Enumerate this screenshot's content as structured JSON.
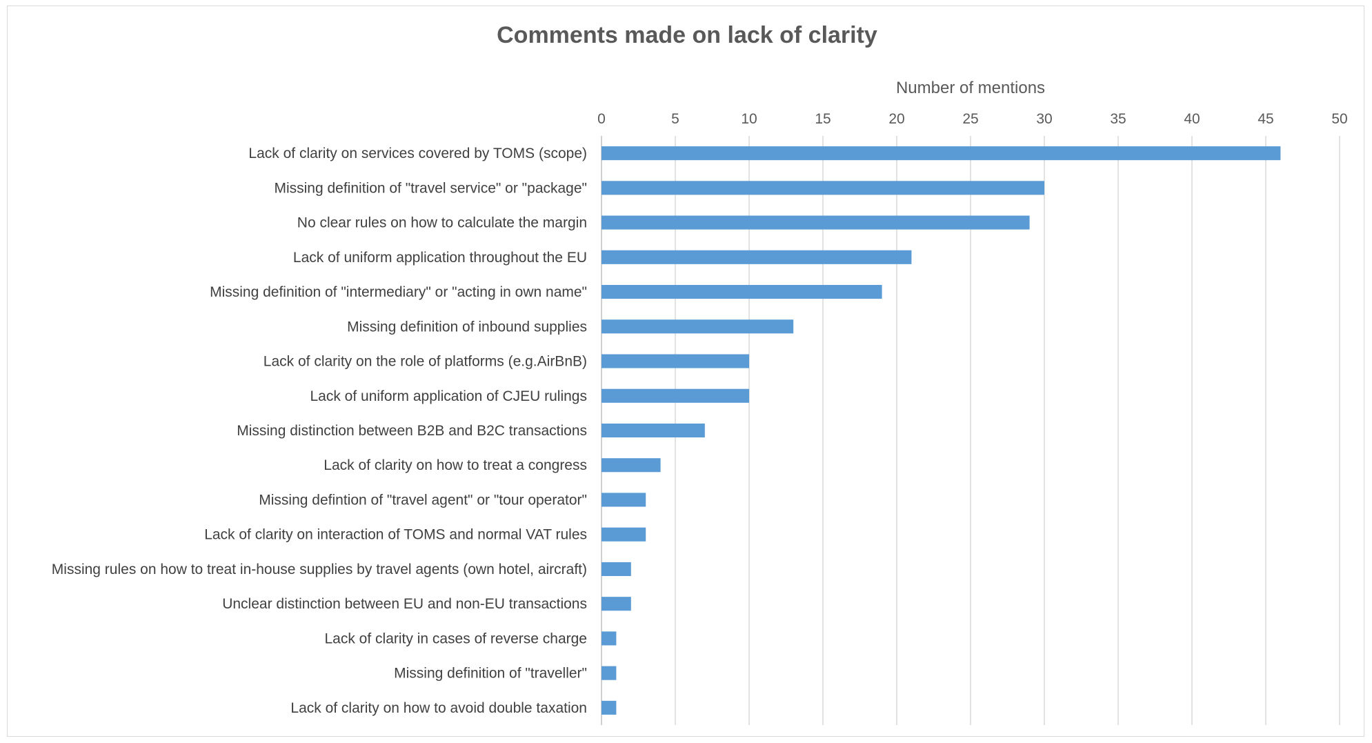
{
  "chart_data": {
    "type": "bar",
    "orientation": "horizontal",
    "title": "Comments made on lack of clarity",
    "xlabel": "Number of mentions",
    "ylabel": "",
    "xlim": [
      0,
      50
    ],
    "x_ticks": [
      0,
      5,
      10,
      15,
      20,
      25,
      30,
      35,
      40,
      45,
      50
    ],
    "x_axis_position": "top",
    "grid": true,
    "legend": "none",
    "bar_color": "#5b9bd5",
    "categories": [
      "Lack of clarity on services covered by TOMS (scope)",
      "Missing definition of \"travel service\" or \"package\"",
      "No clear rules on how to calculate the margin",
      "Lack of uniform application throughout the EU",
      "Missing definition of \"intermediary\" or \"acting in own name\"",
      "Missing definition of inbound supplies",
      "Lack of clarity on the role of platforms (e.g.AirBnB)",
      "Lack of uniform application of CJEU rulings",
      "Missing distinction between B2B and B2C transactions",
      "Lack of clarity on how to treat a congress",
      "Missing defintion of \"travel agent\" or \"tour operator\"",
      "Lack of clarity on interaction of TOMS and normal VAT rules",
      "Missing rules on how to treat in-house supplies by travel agents (own hotel, aircraft)",
      "Unclear distinction between EU and non-EU transactions",
      "Lack of clarity in cases of reverse charge",
      "Missing definition of \"traveller\"",
      "Lack of clarity on how to avoid double taxation"
    ],
    "values": [
      46,
      30,
      29,
      21,
      19,
      13,
      10,
      10,
      7,
      4,
      3,
      3,
      2,
      2,
      1,
      1,
      1
    ]
  }
}
